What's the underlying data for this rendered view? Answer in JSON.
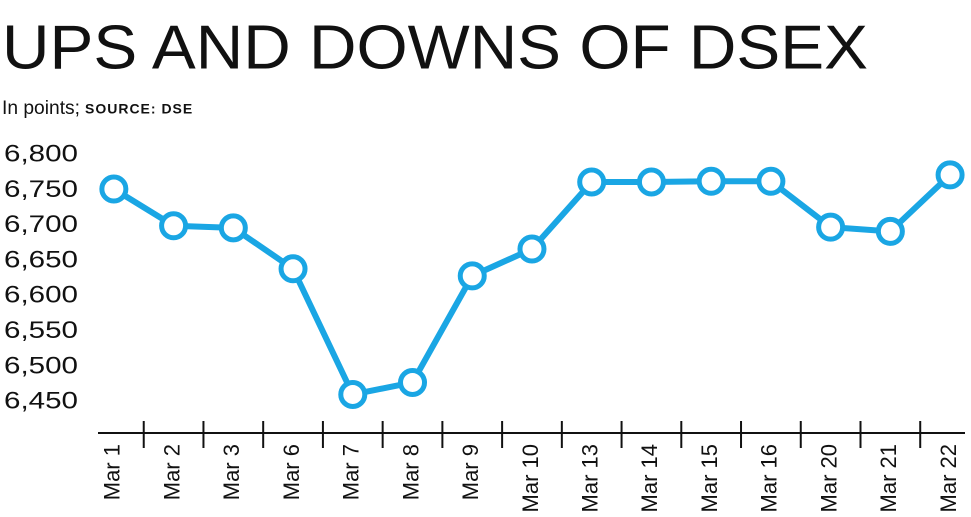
{
  "chart_data": {
    "type": "line",
    "title": "UPS AND DOWNS OF DSEX",
    "subtitle": "In points;",
    "source": "SOURCE: DSE",
    "categories": [
      "Mar 1",
      "Mar 2",
      "Mar 3",
      "Mar 6",
      "Mar 7",
      "Mar 8",
      "Mar 9",
      "Mar 10",
      "Mar 13",
      "Mar 14",
      "Mar 15",
      "Mar 16",
      "Mar 20",
      "Mar 21",
      "Mar 22"
    ],
    "values": [
      6752,
      6700,
      6697,
      6639,
      6461,
      6478,
      6629,
      6667,
      6762,
      6762,
      6763,
      6763,
      6698,
      6692,
      6772
    ],
    "color": "#1aa6e4",
    "ylim": [
      6405,
      6820
    ],
    "yticks": [
      {
        "value": 6450,
        "label": "6,450"
      },
      {
        "value": 6500,
        "label": "6,500"
      },
      {
        "value": 6550,
        "label": "6,550"
      },
      {
        "value": 6600,
        "label": "6,600"
      },
      {
        "value": 6650,
        "label": "6,650"
      },
      {
        "value": 6700,
        "label": "6,700"
      },
      {
        "value": 6750,
        "label": "6,750"
      },
      {
        "value": 6800,
        "label": "6,800"
      }
    ],
    "grid": false
  }
}
